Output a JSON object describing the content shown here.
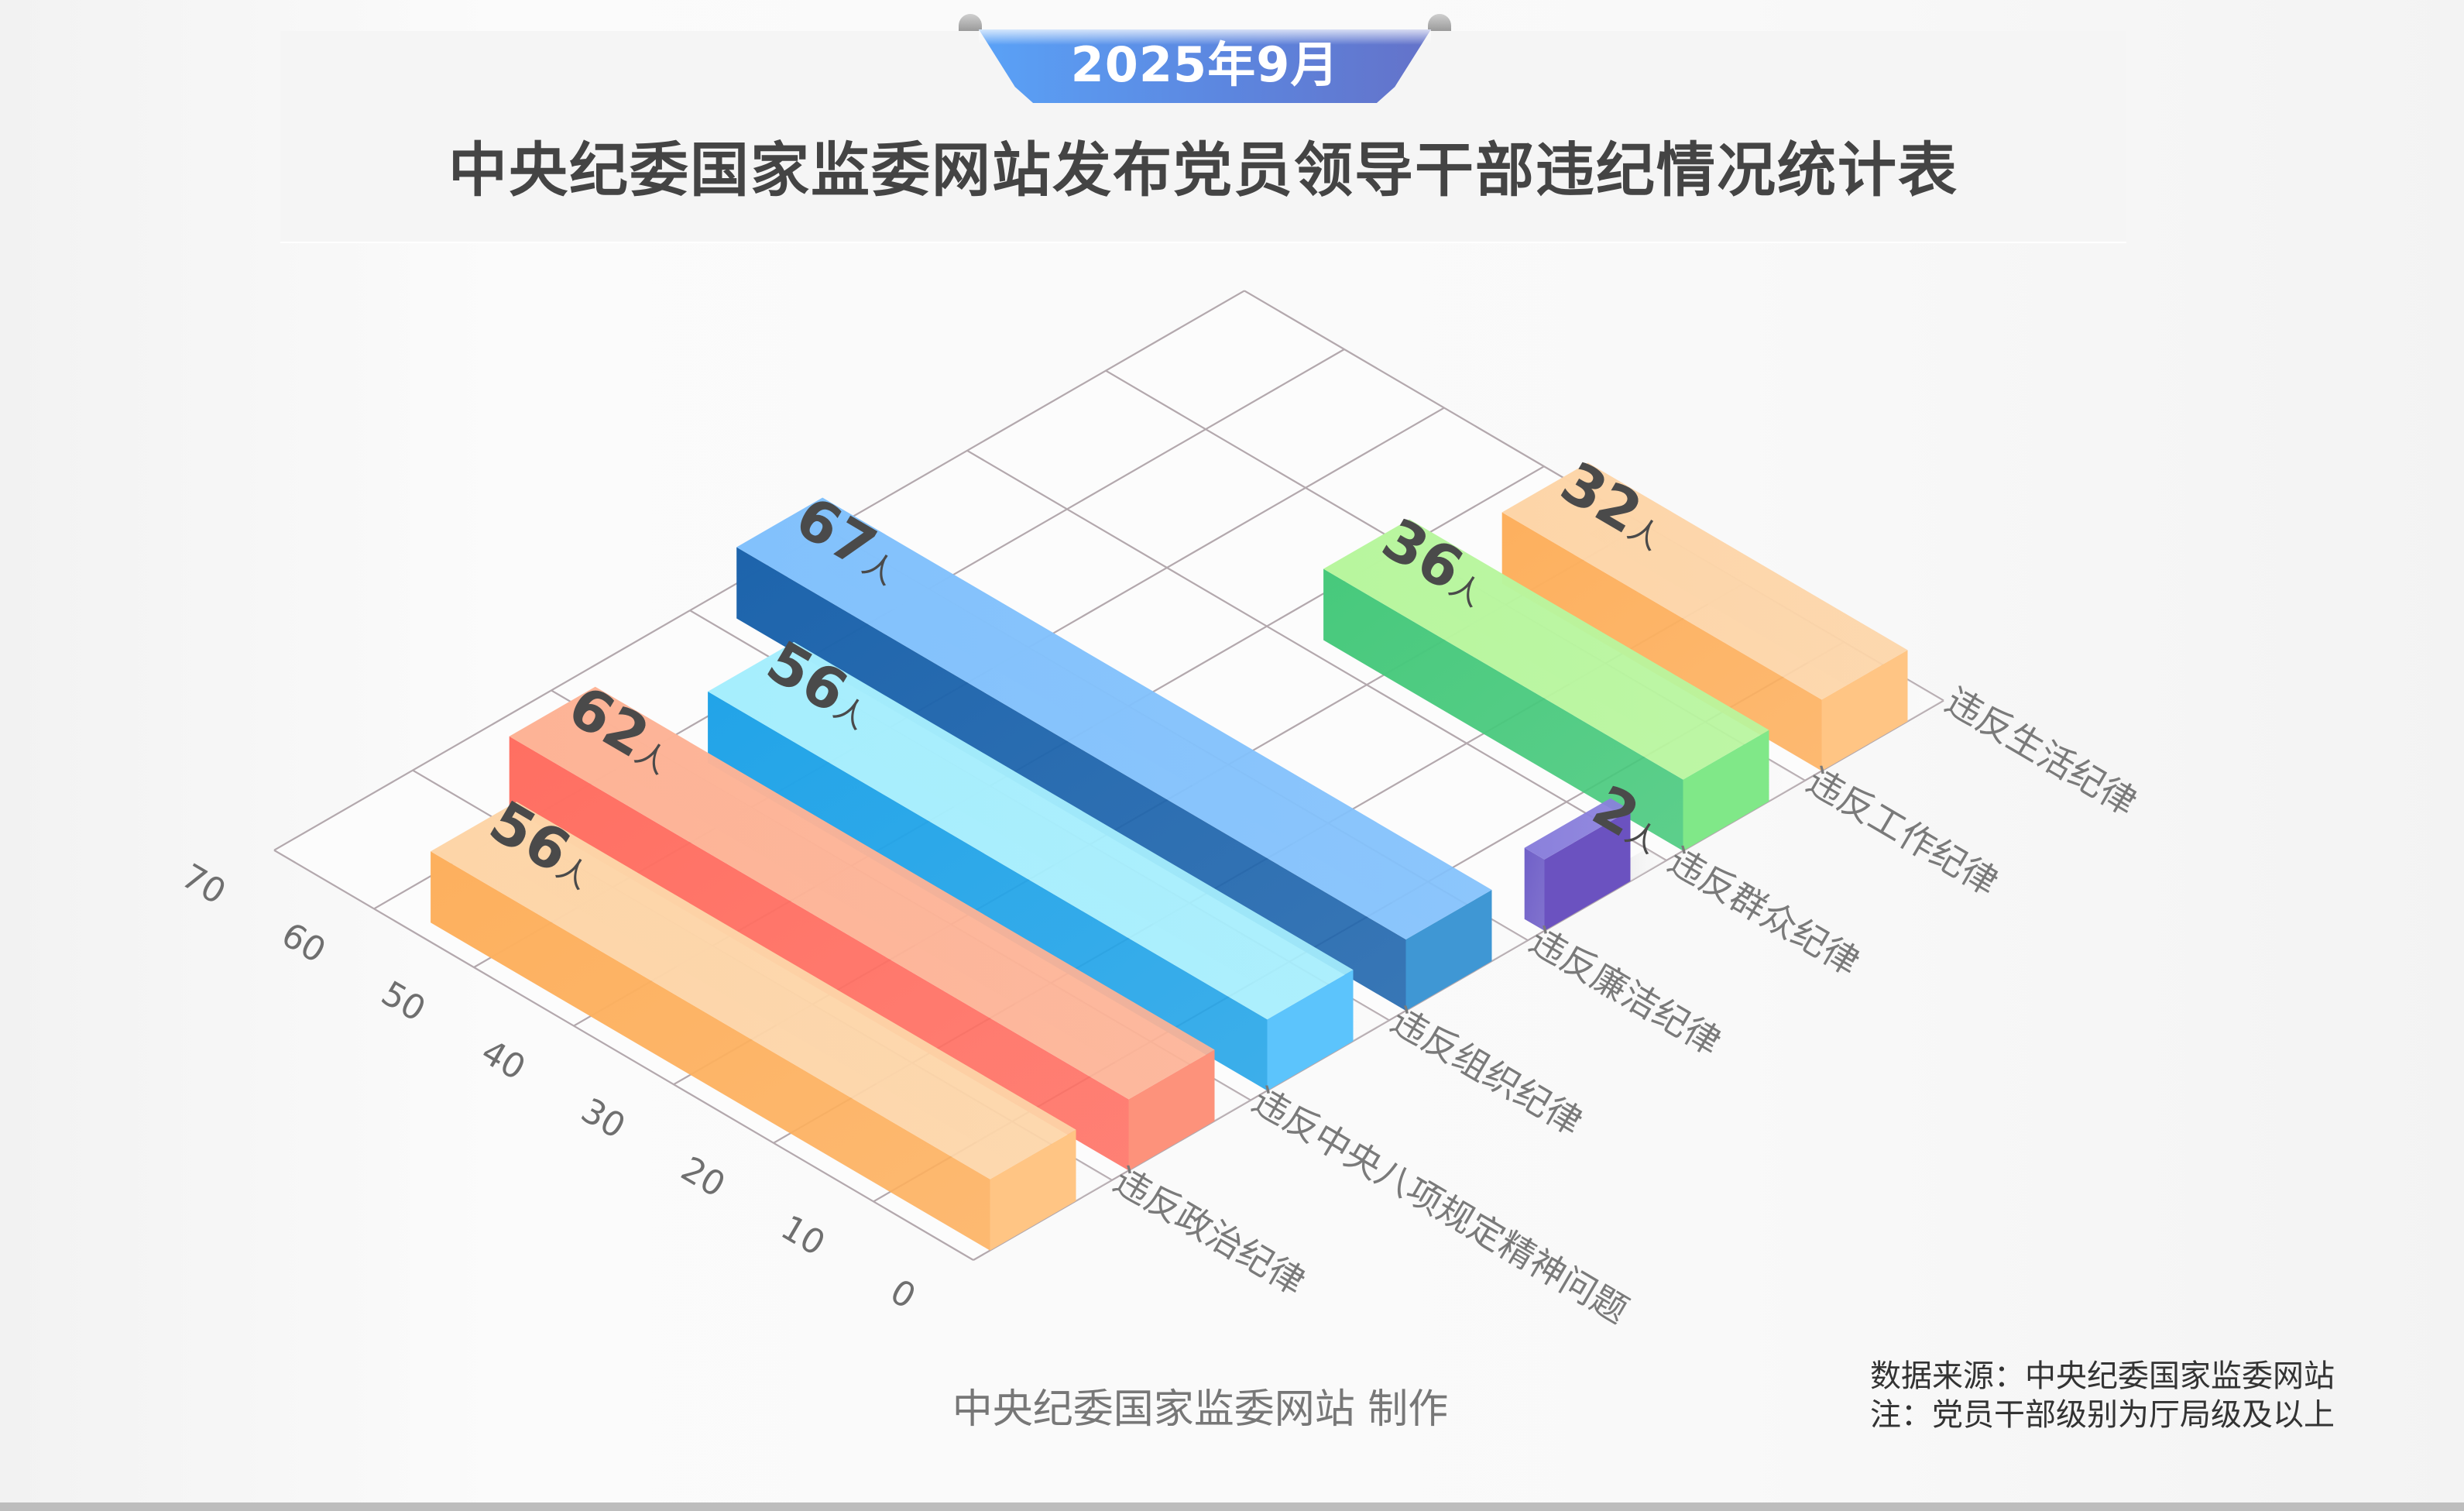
{
  "header": {
    "date_badge": "2025年9月",
    "title": "中央纪委国家监委网站发布党员领导干部违纪情况统计表"
  },
  "footer": {
    "credit": "中央纪委国家监委网站 制作",
    "source": "数据来源：中央纪委国家监委网站",
    "note": "注：党员干部级别为厅局级及以上"
  },
  "chart_data": {
    "type": "bar",
    "style": "isometric-3d",
    "title": "中央纪委国家监委网站发布党员领导干部违纪情况统计表",
    "subtitle": "2025年9月",
    "xlabel": "",
    "ylabel": "",
    "unit": "人",
    "ylim": [
      0,
      70
    ],
    "yticks": [
      0,
      10,
      20,
      30,
      40,
      50,
      60,
      70
    ],
    "grid": true,
    "legend": "none",
    "categories": [
      "违反政治纪律",
      "违反中央八项规定精神问题",
      "违反组织纪律",
      "违反廉洁纪律",
      "违反群众纪律",
      "违反工作纪律",
      "违反生活纪律"
    ],
    "values": [
      56,
      62,
      56,
      67,
      2,
      36,
      32
    ],
    "data_labels": [
      "56人",
      "62人",
      "56人",
      "67人",
      "2人",
      "36人",
      "32人"
    ],
    "colors": [
      {
        "top": "#fdd5a8",
        "left": "#fdb05e",
        "right": "#ffc584"
      },
      {
        "top": "#fdb396",
        "left": "#ff6f62",
        "right": "#fd927b"
      },
      {
        "top": "#a6eefd",
        "left": "#22a4e8",
        "right": "#5cc4fc"
      },
      {
        "top": "#82c1fc",
        "left": "#1d64ac",
        "right": "#3f97d4"
      },
      {
        "top": "#8a80dc",
        "left": "#7060c8",
        "right": "#6b52c0"
      },
      {
        "top": "#b8f69e",
        "left": "#47c97c",
        "right": "#80e888"
      },
      {
        "top": "#fdd5a8",
        "left": "#fdb05e",
        "right": "#ffc584"
      }
    ]
  }
}
